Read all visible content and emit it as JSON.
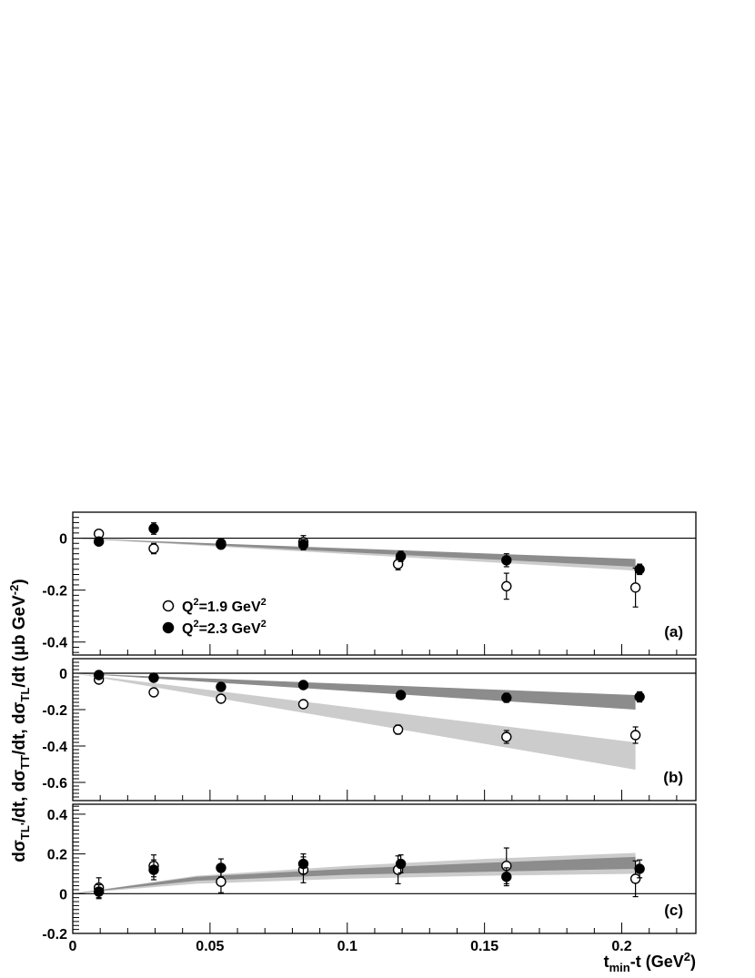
{
  "chart_data": {
    "type": "scatter",
    "xlabel": {
      "main": "t",
      "sub": "min",
      "rest": "-t (GeV",
      "sup": "2",
      "close": ")"
    },
    "ylabel": "dσ_TL'/dt, dσ_TT/dt, dσ_TL/dt (μb GeV^-2)",
    "ylabel_parts": {
      "p1": "dσ",
      "p1s": "TL'",
      "p2": "/dt, dσ",
      "p2s": "TT",
      "p3": "/dt, dσ",
      "p3s": "TL",
      "p4": "/dt  (μb GeV",
      "p4sup": "-2",
      "p5": ")"
    },
    "xlim": [
      0,
      0.227
    ],
    "x_ticks": [
      0,
      0.05,
      0.1,
      0.15,
      0.2
    ],
    "x_tick_labels": [
      "0",
      "0.05",
      "0.1",
      "0.15",
      "0.2"
    ],
    "legend": [
      {
        "marker": "open-circle",
        "label": "Q",
        "sup": "2",
        "rest": "=1.9 GeV",
        "sup2": "2"
      },
      {
        "marker": "filled-circle",
        "label": "Q",
        "sup": "2",
        "rest": "=2.3 GeV",
        "sup2": "2"
      }
    ],
    "panels": [
      {
        "tag": "(a)",
        "ylim": [
          -0.45,
          0.1
        ],
        "y_ticks": [
          0,
          -0.2,
          -0.4
        ],
        "y_tick_labels": [
          "0",
          "-0.2",
          "-0.4"
        ],
        "series": [
          {
            "marker": "open",
            "points": [
              {
                "x": 0.0095,
                "y": 0.017,
                "err": 0.01
              },
              {
                "x": 0.0295,
                "y": -0.04,
                "err": 0.02
              },
              {
                "x": 0.054,
                "y": -0.02,
                "err": 0.012
              },
              {
                "x": 0.084,
                "y": -0.015,
                "err": 0.025
              },
              {
                "x": 0.1185,
                "y": -0.1,
                "err": 0.022
              },
              {
                "x": 0.158,
                "y": -0.185,
                "err": 0.05
              },
              {
                "x": 0.205,
                "y": -0.19,
                "err": 0.075
              }
            ]
          },
          {
            "marker": "filled",
            "points": [
              {
                "x": 0.0095,
                "y": -0.013,
                "err": 0.012
              },
              {
                "x": 0.0295,
                "y": 0.037,
                "err": 0.022
              },
              {
                "x": 0.054,
                "y": -0.025,
                "err": 0.012
              },
              {
                "x": 0.084,
                "y": -0.025,
                "err": 0.02
              },
              {
                "x": 0.1195,
                "y": -0.07,
                "err": 0.02
              },
              {
                "x": 0.158,
                "y": -0.085,
                "err": 0.025
              },
              {
                "x": 0.2065,
                "y": -0.12,
                "err": 0.02
              }
            ]
          }
        ],
        "bands": [
          {
            "color": "#cccccc",
            "x": [
              0,
              0.205
            ],
            "upper": [
              0,
              -0.09
            ],
            "lower": [
              0,
              -0.125
            ]
          },
          {
            "color": "#8c8c8c",
            "x": [
              0,
              0.205
            ],
            "upper": [
              0,
              -0.08
            ],
            "lower": [
              0,
              -0.11
            ]
          }
        ]
      },
      {
        "tag": "(b)",
        "ylim": [
          -0.7,
          0.08
        ],
        "y_ticks": [
          0,
          -0.2,
          -0.4,
          -0.6
        ],
        "y_tick_labels": [
          "0",
          "-0.2",
          "-0.4",
          "-0.6"
        ],
        "series": [
          {
            "marker": "open",
            "points": [
              {
                "x": 0.0095,
                "y": -0.035,
                "err": 0.012
              },
              {
                "x": 0.0295,
                "y": -0.105,
                "err": 0.015
              },
              {
                "x": 0.054,
                "y": -0.14,
                "err": 0.018
              },
              {
                "x": 0.084,
                "y": -0.17,
                "err": 0.022
              },
              {
                "x": 0.1185,
                "y": -0.31,
                "err": 0.025
              },
              {
                "x": 0.158,
                "y": -0.35,
                "err": 0.035
              },
              {
                "x": 0.205,
                "y": -0.34,
                "err": 0.045
              }
            ]
          },
          {
            "marker": "filled",
            "points": [
              {
                "x": 0.0095,
                "y": -0.01,
                "err": 0.01
              },
              {
                "x": 0.0295,
                "y": -0.025,
                "err": 0.01
              },
              {
                "x": 0.054,
                "y": -0.075,
                "err": 0.01
              },
              {
                "x": 0.084,
                "y": -0.065,
                "err": 0.012
              },
              {
                "x": 0.1195,
                "y": -0.12,
                "err": 0.012
              },
              {
                "x": 0.158,
                "y": -0.135,
                "err": 0.025
              },
              {
                "x": 0.2065,
                "y": -0.13,
                "err": 0.028
              }
            ]
          }
        ],
        "bands": [
          {
            "color": "#cccccc",
            "x": [
              0,
              0.205
            ],
            "upper": [
              0,
              -0.38
            ],
            "lower": [
              0,
              -0.53
            ]
          },
          {
            "color": "#8c8c8c",
            "x": [
              0,
              0.205
            ],
            "upper": [
              0,
              -0.12
            ],
            "lower": [
              0,
              -0.2
            ]
          }
        ]
      },
      {
        "tag": "(c)",
        "ylim": [
          -0.2,
          0.45
        ],
        "y_ticks": [
          -0.2,
          0,
          0.2,
          0.4
        ],
        "y_tick_labels": [
          "-0.2",
          "0",
          "0.2",
          "0.4"
        ],
        "series": [
          {
            "marker": "open",
            "points": [
              {
                "x": 0.0095,
                "y": 0.03,
                "err": 0.05
              },
              {
                "x": 0.0295,
                "y": 0.14,
                "err": 0.055
              },
              {
                "x": 0.054,
                "y": 0.06,
                "err": 0.055
              },
              {
                "x": 0.084,
                "y": 0.12,
                "err": 0.065
              },
              {
                "x": 0.1185,
                "y": 0.12,
                "err": 0.07
              },
              {
                "x": 0.158,
                "y": 0.14,
                "err": 0.09
              },
              {
                "x": 0.205,
                "y": 0.075,
                "err": 0.09
              }
            ]
          },
          {
            "marker": "filled",
            "points": [
              {
                "x": 0.0095,
                "y": 0.01,
                "err": 0.035
              },
              {
                "x": 0.0295,
                "y": 0.12,
                "err": 0.05
              },
              {
                "x": 0.054,
                "y": 0.13,
                "err": 0.045
              },
              {
                "x": 0.084,
                "y": 0.15,
                "err": 0.05
              },
              {
                "x": 0.1195,
                "y": 0.15,
                "err": 0.045
              },
              {
                "x": 0.158,
                "y": 0.085,
                "err": 0.045
              },
              {
                "x": 0.2065,
                "y": 0.125,
                "err": 0.045
              }
            ]
          }
        ],
        "bands": [
          {
            "color": "#cccccc",
            "x": [
              0,
              0.045,
              0.1,
              0.15,
              0.205
            ],
            "upper": [
              0,
              0.09,
              0.14,
              0.175,
              0.205
            ],
            "lower": [
              0,
              0.05,
              0.075,
              0.09,
              0.1
            ]
          },
          {
            "color": "#8c8c8c",
            "x": [
              0,
              0.045,
              0.1,
              0.15,
              0.205
            ],
            "upper": [
              0,
              0.085,
              0.125,
              0.155,
              0.185
            ],
            "lower": [
              0,
              0.065,
              0.095,
              0.11,
              0.125
            ]
          }
        ]
      }
    ]
  }
}
